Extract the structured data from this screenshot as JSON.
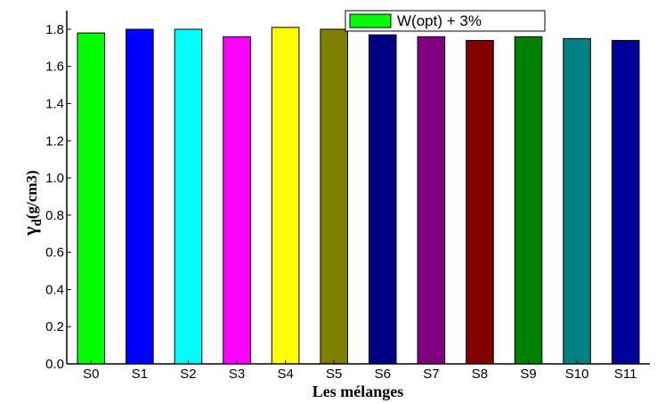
{
  "chart_data": {
    "type": "bar",
    "categories": [
      "S0",
      "S1",
      "S2",
      "S3",
      "S4",
      "S5",
      "S6",
      "S7",
      "S8",
      "S9",
      "S10",
      "S11"
    ],
    "values": [
      1.78,
      1.8,
      1.8,
      1.76,
      1.81,
      1.8,
      1.77,
      1.76,
      1.74,
      1.76,
      1.75,
      1.74
    ],
    "colors": [
      "#00ff00",
      "#0000ff",
      "#00ffff",
      "#ff00ff",
      "#ffff00",
      "#808000",
      "#000080",
      "#800080",
      "#800000",
      "#008000",
      "#008080",
      "#000099"
    ],
    "legend": {
      "label": "W(opt) + 3%",
      "color": "#00ff00",
      "position": "top-right"
    },
    "xlabel": "Les mélanges",
    "ylabel": {
      "main": "γ",
      "sub": "d",
      "unit": "(g/cm3)"
    },
    "ylim": [
      0,
      1.9
    ],
    "yticks": [
      "0.0",
      "0.2",
      "0.4",
      "0.6",
      "0.8",
      "1.0",
      "1.2",
      "1.4",
      "1.6",
      "1.8"
    ],
    "grid": false
  }
}
